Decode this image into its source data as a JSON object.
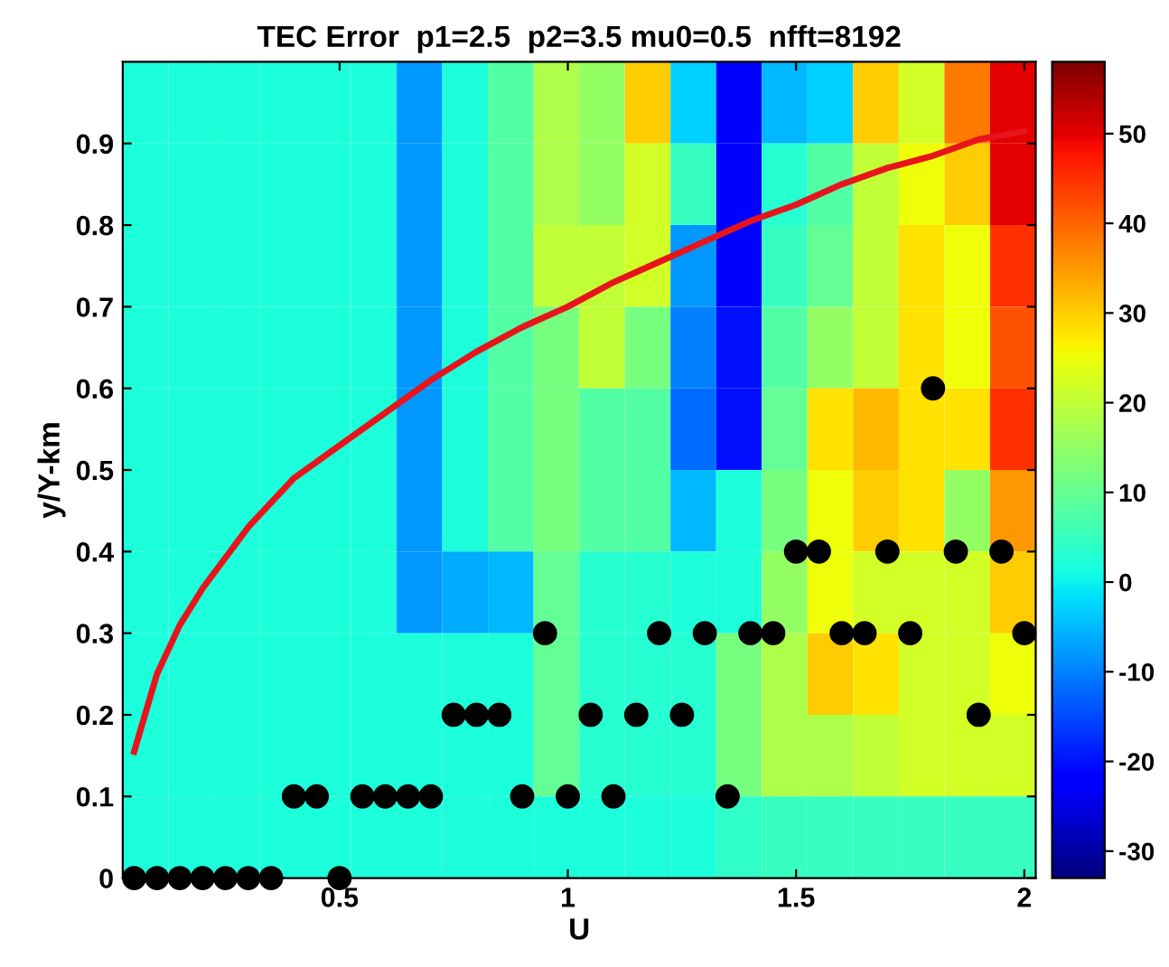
{
  "chart_data": {
    "type": "heatmap",
    "title": "TEC Error  p1=2.5  p2=3.5 mu0=0.5  nfft=8192",
    "xlabel": "U",
    "ylabel": "y/Y-km",
    "x": [
      0.075,
      0.175,
      0.275,
      0.375,
      0.475,
      0.575,
      0.675,
      0.775,
      0.875,
      0.975,
      1.075,
      1.175,
      1.275,
      1.375,
      1.475,
      1.575,
      1.675,
      1.775,
      1.875,
      1.975
    ],
    "cells": [
      [
        2,
        2,
        2,
        2,
        2,
        2,
        -8,
        2,
        8,
        18,
        15,
        30,
        -3,
        -22,
        -5,
        -3,
        30,
        22,
        38,
        50
      ],
      [
        2,
        2,
        2,
        2,
        2,
        2,
        -8,
        2,
        8,
        18,
        15,
        22,
        5,
        -22,
        3,
        8,
        20,
        25,
        30,
        50
      ],
      [
        2,
        2,
        2,
        2,
        2,
        2,
        -8,
        2,
        8,
        20,
        20,
        22,
        -8,
        -22,
        5,
        10,
        20,
        28,
        25,
        45
      ],
      [
        2,
        2,
        2,
        2,
        2,
        2,
        -8,
        2,
        8,
        12,
        20,
        12,
        -10,
        -20,
        8,
        15,
        20,
        28,
        25,
        42
      ],
      [
        2,
        2,
        2,
        2,
        2,
        2,
        -8,
        2,
        8,
        12,
        8,
        8,
        -12,
        -20,
        10,
        28,
        32,
        28,
        28,
        45
      ],
      [
        2,
        2,
        2,
        2,
        2,
        2,
        -8,
        2,
        8,
        12,
        8,
        8,
        -5,
        2,
        12,
        25,
        30,
        28,
        15,
        35
      ],
      [
        2,
        2,
        2,
        2,
        2,
        2,
        -8,
        -6,
        -5,
        10,
        3,
        3,
        2,
        2,
        15,
        25,
        22,
        22,
        22,
        30
      ],
      [
        2,
        2,
        2,
        2,
        2,
        2,
        2,
        2,
        2,
        10,
        3,
        3,
        3,
        12,
        18,
        30,
        28,
        22,
        22,
        25
      ],
      [
        2,
        2,
        2,
        2,
        2,
        2,
        2,
        2,
        2,
        10,
        3,
        3,
        3,
        12,
        18,
        18,
        20,
        22,
        22,
        22
      ],
      [
        2,
        2,
        2,
        2,
        2,
        2,
        2,
        2,
        2,
        2,
        2,
        2,
        2,
        4,
        5,
        5,
        5,
        5,
        5,
        5
      ]
    ],
    "clim": [
      -33,
      58
    ],
    "cticks": [
      -30,
      -20,
      -10,
      0,
      10,
      20,
      30,
      40,
      50
    ],
    "xlim": [
      0.025,
      2.025
    ],
    "ylim": [
      0,
      1
    ],
    "xticks": [
      0.5,
      1,
      1.5,
      2
    ],
    "yticks": [
      0,
      0.1,
      0.2,
      0.3,
      0.4,
      0.5,
      0.6,
      0.7,
      0.8,
      0.9
    ],
    "series": [
      {
        "type": "line",
        "color": "#e8141c",
        "line_style": "solid",
        "marker": "none",
        "x": [
          0.05,
          0.1,
          0.15,
          0.2,
          0.3,
          0.4,
          0.5,
          0.6,
          0.7,
          0.8,
          0.9,
          1.0,
          1.1,
          1.2,
          1.3,
          1.4,
          1.5,
          1.6,
          1.7,
          1.8,
          1.9,
          2.0
        ],
        "values": [
          0.155,
          0.25,
          0.31,
          0.355,
          0.43,
          0.49,
          0.53,
          0.57,
          0.61,
          0.645,
          0.675,
          0.7,
          0.73,
          0.755,
          0.78,
          0.805,
          0.825,
          0.85,
          0.87,
          0.885,
          0.905,
          0.915
        ]
      },
      {
        "type": "scatter",
        "color": "#000000",
        "marker": "circle",
        "x": [
          0.05,
          0.1,
          0.15,
          0.2,
          0.25,
          0.3,
          0.35,
          0.5,
          0.4,
          0.45,
          0.55,
          0.6,
          0.65,
          0.7,
          0.9,
          1.0,
          1.1,
          1.35,
          0.75,
          0.8,
          0.85,
          1.05,
          1.15,
          1.25,
          1.9,
          0.95,
          1.2,
          1.3,
          1.4,
          1.45,
          1.6,
          1.65,
          1.75,
          2.0,
          1.5,
          1.55,
          1.7,
          1.85,
          1.95,
          1.8
        ],
        "values": [
          0,
          0,
          0,
          0,
          0,
          0,
          0,
          0,
          0.1,
          0.1,
          0.1,
          0.1,
          0.1,
          0.1,
          0.1,
          0.1,
          0.1,
          0.1,
          0.2,
          0.2,
          0.2,
          0.2,
          0.2,
          0.2,
          0.2,
          0.3,
          0.3,
          0.3,
          0.3,
          0.3,
          0.3,
          0.3,
          0.3,
          0.3,
          0.4,
          0.4,
          0.4,
          0.4,
          0.4,
          0.6
        ]
      }
    ],
    "grid": false
  }
}
